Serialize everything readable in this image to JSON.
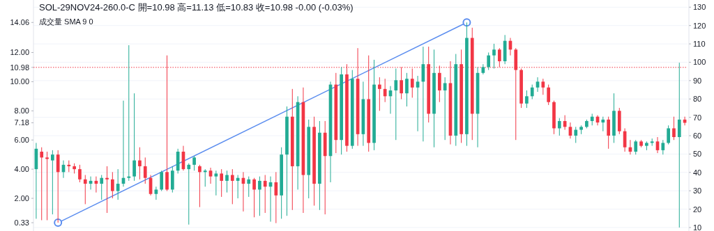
{
  "chart_data": {
    "type": "candlestick",
    "title": "SOL-29NOV24-260.0-C 開=10.98 高=11.13 低=10.83 收=10.98 -0.00 (-0.03%)",
    "subtitle": "成交量 SMA 9 0",
    "categories": [
      null,
      null,
      null,
      null,
      null,
      null,
      null,
      null,
      null,
      null,
      null,
      null,
      null,
      null,
      null,
      null,
      null,
      null,
      null,
      null,
      null,
      null,
      null,
      null,
      null,
      null,
      null,
      null,
      null,
      null,
      null,
      null,
      null,
      null,
      null,
      null,
      null,
      null,
      null,
      null,
      null,
      null,
      null,
      null,
      null,
      null,
      null,
      null,
      null,
      null,
      null,
      null,
      null,
      null,
      null,
      null,
      null,
      null,
      null,
      null,
      null,
      null,
      null,
      null,
      null,
      null,
      null,
      null,
      null,
      null,
      null,
      null,
      null,
      null,
      null,
      null,
      null,
      null,
      null,
      null,
      null,
      null,
      null,
      null,
      null,
      null,
      null,
      null,
      null,
      null,
      null,
      null,
      null,
      null,
      null,
      null,
      null,
      null,
      null,
      null,
      null,
      null,
      null,
      null,
      null,
      null,
      null,
      null,
      null,
      null,
      null,
      null,
      null,
      null,
      null,
      null,
      null,
      null,
      null,
      null
    ],
    "ohlc": [
      [
        4.0,
        5.8,
        0.6,
        5.4
      ],
      [
        5.2,
        5.5,
        0.5,
        4.8
      ],
      [
        4.8,
        5.2,
        0.5,
        4.7
      ],
      [
        4.6,
        5.3,
        0.9,
        5.0
      ],
      [
        5.0,
        5.3,
        0.33,
        3.8
      ],
      [
        3.8,
        4.6,
        3.4,
        4.3
      ],
      [
        4.3,
        4.6,
        3.8,
        4.2
      ],
      [
        4.2,
        4.4,
        3.7,
        4.0
      ],
      [
        4.0,
        4.3,
        3.1,
        3.3
      ],
      [
        3.3,
        3.6,
        1.6,
        3.0
      ],
      [
        3.0,
        3.5,
        2.6,
        3.2
      ],
      [
        3.2,
        3.5,
        2.4,
        3.0
      ],
      [
        3.0,
        3.6,
        1.9,
        3.4
      ],
      [
        3.4,
        4.2,
        1.0,
        3.3
      ],
      [
        3.3,
        3.8,
        2.0,
        2.5
      ],
      [
        2.5,
        4.0,
        1.9,
        3.0
      ],
      [
        3.0,
        8.7,
        2.8,
        3.4
      ],
      [
        3.4,
        12.5,
        3.2,
        3.5
      ],
      [
        3.5,
        9.2,
        3.2,
        4.6
      ],
      [
        4.6,
        5.5,
        3.3,
        4.2
      ],
      [
        4.2,
        4.8,
        3.0,
        3.4
      ],
      [
        3.4,
        3.6,
        2.2,
        2.3
      ],
      [
        2.3,
        2.8,
        1.9,
        2.6
      ],
      [
        2.6,
        3.9,
        2.5,
        3.8
      ],
      [
        3.8,
        11.8,
        2.5,
        2.6
      ],
      [
        2.6,
        4.2,
        2.4,
        3.9
      ],
      [
        3.9,
        5.4,
        3.7,
        5.2
      ],
      [
        5.2,
        5.6,
        3.9,
        4.0
      ],
      [
        4.0,
        4.4,
        0.2,
        4.3
      ],
      [
        4.3,
        4.9,
        3.9,
        4.8
      ],
      [
        4.2,
        4.3,
        1.4,
        3.8
      ],
      [
        3.8,
        4.0,
        2.8,
        3.9
      ],
      [
        3.9,
        4.1,
        3.0,
        3.5
      ],
      [
        3.5,
        3.9,
        2.2,
        3.7
      ],
      [
        3.7,
        4.0,
        2.1,
        3.2
      ],
      [
        3.2,
        3.9,
        2.4,
        3.6
      ],
      [
        3.6,
        4.0,
        1.6,
        3.2
      ],
      [
        3.2,
        3.6,
        2.0,
        3.4
      ],
      [
        3.4,
        3.8,
        1.1,
        3.0
      ],
      [
        3.0,
        3.5,
        2.1,
        3.3
      ],
      [
        3.3,
        3.4,
        0.7,
        2.6
      ],
      [
        2.6,
        3.5,
        0.8,
        3.2
      ],
      [
        3.2,
        3.6,
        1.0,
        2.8
      ],
      [
        2.8,
        3.5,
        0.4,
        3.1
      ],
      [
        3.1,
        3.8,
        0.3,
        2.2
      ],
      [
        2.2,
        5.5,
        0.6,
        5.0
      ],
      [
        5.0,
        8.3,
        0.8,
        7.6
      ],
      [
        7.6,
        9.5,
        1.2,
        4.2
      ],
      [
        4.2,
        9.0,
        2.6,
        8.6
      ],
      [
        8.6,
        9.6,
        1.0,
        3.6
      ],
      [
        3.6,
        7.4,
        2.0,
        6.9
      ],
      [
        6.9,
        7.6,
        1.5,
        3.0
      ],
      [
        3.0,
        7.3,
        1.2,
        6.5
      ],
      [
        6.5,
        7.3,
        0.9,
        4.9
      ],
      [
        4.9,
        10.0,
        3.1,
        9.8
      ],
      [
        9.8,
        10.6,
        5.1,
        6.0
      ],
      [
        6.0,
        11.0,
        5.0,
        10.5
      ],
      [
        10.5,
        11.2,
        5.2,
        5.6
      ],
      [
        5.6,
        10.8,
        5.4,
        10.2
      ],
      [
        10.2,
        12.3,
        5.6,
        6.4
      ],
      [
        6.4,
        10.0,
        5.6,
        8.8
      ],
      [
        8.8,
        11.8,
        5.2,
        5.8
      ],
      [
        5.8,
        11.5,
        5.3,
        9.8
      ],
      [
        9.8,
        10.3,
        8.0,
        9.5
      ],
      [
        9.5,
        10.2,
        8.6,
        9.0
      ],
      [
        9.0,
        9.7,
        7.8,
        9.4
      ],
      [
        9.4,
        10.9,
        6.0,
        10.1
      ],
      [
        10.1,
        11.0,
        8.8,
        9.2
      ],
      [
        9.2,
        10.6,
        8.3,
        10.2
      ],
      [
        10.2,
        10.9,
        8.9,
        9.6
      ],
      [
        9.6,
        10.4,
        6.6,
        10.0
      ],
      [
        10.0,
        12.4,
        5.9,
        11.2
      ],
      [
        11.2,
        12.4,
        7.2,
        7.8
      ],
      [
        7.8,
        12.2,
        5.5,
        10.6
      ],
      [
        10.6,
        11.1,
        8.6,
        9.4
      ],
      [
        9.4,
        10.3,
        6.0,
        9.9
      ],
      [
        9.9,
        11.4,
        5.7,
        6.3
      ],
      [
        6.3,
        11.9,
        5.6,
        11.2
      ],
      [
        11.2,
        12.2,
        5.8,
        6.4
      ],
      [
        6.4,
        14.06,
        5.6,
        13.0
      ],
      [
        13.0,
        13.7,
        6.0,
        7.8
      ],
      [
        7.8,
        11.0,
        5.5,
        10.6
      ],
      [
        10.6,
        11.2,
        10.5,
        11.0
      ],
      [
        11.0,
        12.0,
        10.8,
        11.8
      ],
      [
        11.8,
        12.6,
        10.9,
        12.2
      ],
      [
        12.2,
        12.3,
        11.0,
        11.4
      ],
      [
        11.4,
        13.2,
        11.2,
        12.8
      ],
      [
        12.8,
        13.0,
        11.8,
        12.2
      ],
      [
        12.2,
        12.3,
        6.0,
        10.8
      ],
      [
        10.8,
        10.9,
        8.2,
        8.5
      ],
      [
        8.5,
        9.4,
        8.2,
        9.0
      ],
      [
        9.0,
        9.8,
        8.8,
        9.6
      ],
      [
        9.6,
        10.3,
        9.3,
        10.0
      ],
      [
        10.0,
        10.2,
        9.1,
        9.6
      ],
      [
        9.6,
        9.8,
        8.4,
        8.6
      ],
      [
        8.6,
        8.7,
        6.4,
        6.8
      ],
      [
        6.8,
        7.5,
        6.3,
        7.3
      ],
      [
        7.3,
        7.7,
        6.7,
        6.9
      ],
      [
        6.9,
        7.2,
        6.1,
        6.3
      ],
      [
        6.3,
        6.9,
        5.8,
        6.7
      ],
      [
        6.7,
        7.0,
        6.4,
        6.9
      ],
      [
        6.9,
        7.4,
        6.8,
        7.3
      ],
      [
        7.3,
        7.8,
        7.0,
        7.6
      ],
      [
        7.6,
        7.7,
        7.0,
        7.2
      ],
      [
        7.2,
        7.6,
        6.6,
        7.4
      ],
      [
        7.4,
        7.6,
        5.4,
        6.3
      ],
      [
        6.3,
        9.2,
        5.8,
        8.0
      ],
      [
        8.0,
        8.2,
        6.4,
        6.6
      ],
      [
        6.6,
        6.8,
        5.2,
        5.5
      ],
      [
        5.5,
        6.0,
        5.0,
        5.2
      ],
      [
        5.2,
        6.0,
        5.0,
        5.9
      ],
      [
        5.9,
        6.0,
        5.5,
        5.6
      ],
      [
        5.6,
        5.9,
        5.3,
        5.8
      ],
      [
        5.8,
        6.1,
        5.6,
        5.9
      ],
      [
        5.9,
        6.2,
        5.1,
        5.3
      ],
      [
        5.3,
        6.0,
        5.0,
        5.8
      ],
      [
        5.8,
        7.0,
        5.7,
        6.8
      ],
      [
        6.8,
        7.6,
        6.0,
        6.2
      ],
      [
        6.2,
        11.3,
        0.0,
        7.4
      ],
      [
        7.4,
        7.6,
        7.0,
        7.18
      ]
    ],
    "colors": [
      "#22ab94",
      "#f23645",
      "#f23645",
      "#22ab94",
      "#f23645",
      "#22ab94",
      "#f23645",
      "#f23645",
      "#f23645",
      "#f23645",
      "#22ab94",
      "#f23645",
      "#22ab94",
      "#f23645",
      "#f23645",
      "#22ab94",
      "#22ab94",
      "#22ab94",
      "#22ab94",
      "#f23645",
      "#f23645",
      "#f23645",
      "#22ab94",
      "#22ab94",
      "#f23645",
      "#22ab94",
      "#22ab94",
      "#f23645",
      "#22ab94",
      "#22ab94",
      "#f23645",
      "#22ab94",
      "#f23645",
      "#22ab94",
      "#f23645",
      "#22ab94",
      "#f23645",
      "#22ab94",
      "#f23645",
      "#22ab94",
      "#f23645",
      "#22ab94",
      "#f23645",
      "#22ab94",
      "#f23645",
      "#22ab94",
      "#22ab94",
      "#f23645",
      "#22ab94",
      "#f23645",
      "#22ab94",
      "#f23645",
      "#22ab94",
      "#f23645",
      "#22ab94",
      "#f23645",
      "#22ab94",
      "#f23645",
      "#22ab94",
      "#f23645",
      "#22ab94",
      "#f23645",
      "#22ab94",
      "#f23645",
      "#f23645",
      "#22ab94",
      "#22ab94",
      "#f23645",
      "#22ab94",
      "#f23645",
      "#22ab94",
      "#22ab94",
      "#f23645",
      "#22ab94",
      "#f23645",
      "#22ab94",
      "#f23645",
      "#22ab94",
      "#f23645",
      "#22ab94",
      "#f23645",
      "#22ab94",
      "#22ab94",
      "#22ab94",
      "#22ab94",
      "#f23645",
      "#22ab94",
      "#f23645",
      "#f23645",
      "#f23645",
      "#22ab94",
      "#22ab94",
      "#22ab94",
      "#f23645",
      "#f23645",
      "#f23645",
      "#22ab94",
      "#f23645",
      "#f23645",
      "#22ab94",
      "#22ab94",
      "#22ab94",
      "#22ab94",
      "#f23645",
      "#22ab94",
      "#f23645",
      "#22ab94",
      "#f23645",
      "#f23645",
      "#f23645",
      "#22ab94",
      "#f23645",
      "#22ab94",
      "#22ab94",
      "#f23645",
      "#22ab94",
      "#22ab94",
      "#f23645",
      "#22ab94",
      "#f23645"
    ],
    "series": [
      {
        "type": "line",
        "color": "#5b8def",
        "marker": "circle",
        "values": [
          null,
          null,
          null,
          null,
          0.33,
          null,
          null,
          null,
          null,
          null,
          null,
          null,
          null,
          null,
          null,
          null,
          null,
          null,
          null,
          null,
          null,
          null,
          null,
          null,
          null,
          null,
          null,
          null,
          null,
          null,
          null,
          null,
          null,
          null,
          null,
          null,
          null,
          null,
          null,
          null,
          null,
          null,
          null,
          null,
          null,
          null,
          null,
          null,
          null,
          null,
          null,
          null,
          null,
          null,
          null,
          null,
          null,
          null,
          null,
          null,
          null,
          null,
          null,
          null,
          null,
          null,
          null,
          null,
          null,
          null,
          null,
          null,
          null,
          null,
          null,
          null,
          null,
          null,
          null,
          14.06,
          null,
          null,
          null,
          null,
          null,
          null,
          null,
          null,
          null,
          null,
          null,
          null,
          null,
          null,
          null,
          null,
          null,
          null,
          null,
          null,
          null,
          null,
          null,
          null,
          null,
          null,
          null,
          null,
          null,
          null,
          null,
          null,
          null,
          null,
          null,
          null,
          null,
          null,
          null,
          null
        ]
      }
    ],
    "ylim": [
      -0.24,
      15.6
    ],
    "yticks": [
      {
        "value": 0.33,
        "label": "0.33"
      },
      {
        "value": 2,
        "label": "2.00"
      },
      {
        "value": 4,
        "label": "4.00"
      },
      {
        "value": 6,
        "label": "6.00"
      },
      {
        "value": 7.18,
        "label": "7.18"
      },
      {
        "value": 8,
        "label": "8.00"
      },
      {
        "value": 10,
        "label": "10.00"
      },
      {
        "value": 10.98,
        "label": "10.98"
      },
      {
        "value": 12,
        "label": "12.00"
      },
      {
        "value": 14.06,
        "label": "14.06"
      }
    ],
    "y2lim": [
      8.1,
      133.9
    ],
    "y2ticks": [
      10,
      20,
      30,
      40,
      50,
      60,
      70,
      80,
      90,
      100,
      110,
      120,
      130
    ],
    "ref_lines": [
      {
        "axis": "y",
        "value": 10.98,
        "color": "#f23645",
        "line_style": "dotted"
      }
    ],
    "grid": "y2",
    "tick_labels": "y"
  }
}
